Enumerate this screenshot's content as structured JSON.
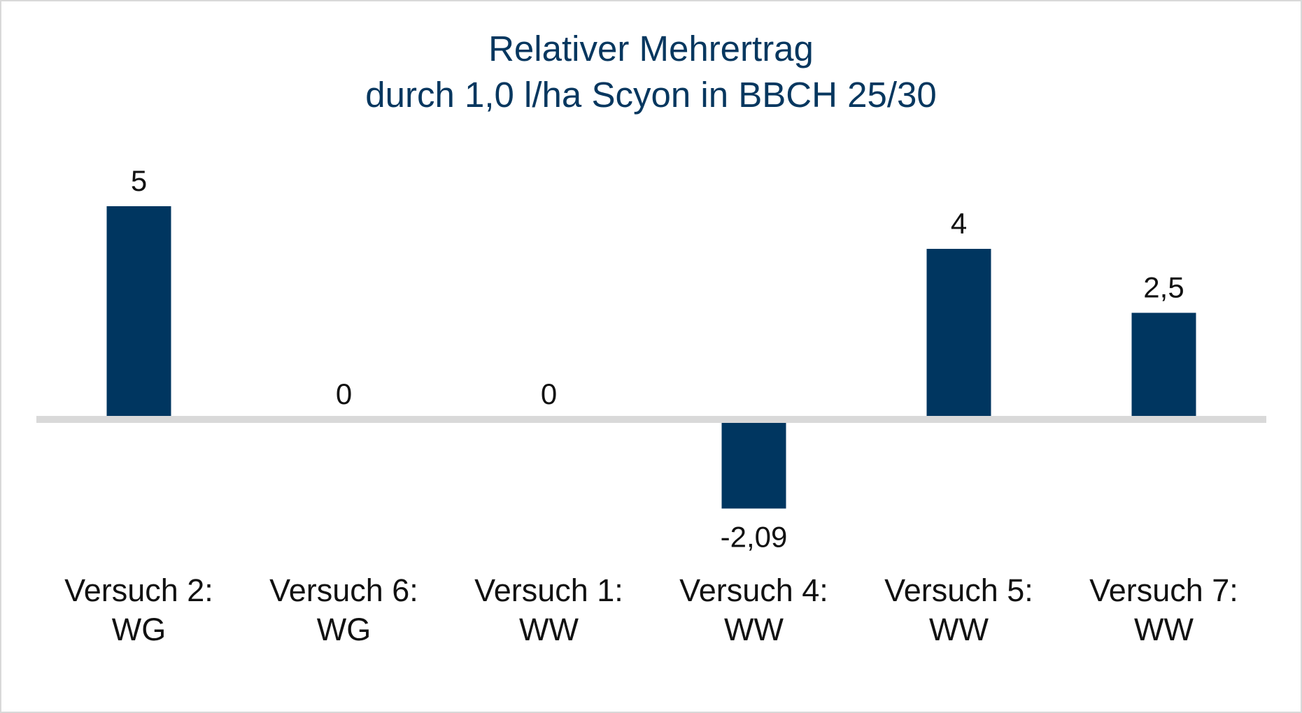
{
  "chart_data": {
    "type": "bar",
    "title_line1": "Relativer Mehrertrag",
    "title_line2": "durch 1,0 l/ha Scyon in BBCH 25/30",
    "categories": [
      [
        "Versuch 2:",
        "WG"
      ],
      [
        "Versuch 6:",
        "WG"
      ],
      [
        "Versuch 1:",
        "WW"
      ],
      [
        "Versuch 4:",
        "WW"
      ],
      [
        "Versuch 5:",
        "WW"
      ],
      [
        "Versuch 7:",
        "WW"
      ]
    ],
    "values": [
      5,
      0,
      0,
      -2.09,
      4,
      2.5
    ],
    "value_labels": [
      "5",
      "0",
      "0",
      "-2,09",
      "4",
      "2,5"
    ],
    "xlabel": "",
    "ylabel": "",
    "ylim": [
      -2.09,
      5
    ],
    "grid": false,
    "legend": "none",
    "colors": {
      "bar": "#003660",
      "axis": "#d9d9d9",
      "title": "#07375f",
      "text": "#111111"
    }
  }
}
